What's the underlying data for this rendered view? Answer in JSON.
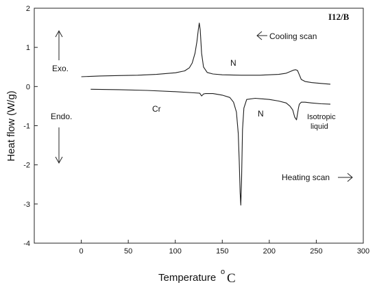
{
  "chart_data": {
    "type": "line",
    "title": "I12/B",
    "xlabel": "Temperature",
    "xlabel_unit_sup": "o",
    "xlabel_unit": "C",
    "ylabel": "Heat flow (W/g)",
    "xlim": [
      -50,
      300
    ],
    "ylim": [
      -4,
      2
    ],
    "xticks": [
      0,
      50,
      100,
      150,
      200,
      250,
      300
    ],
    "yticks": [
      -4,
      -3,
      -2,
      -1,
      0,
      1,
      2
    ],
    "grid": false,
    "series": [
      {
        "name": "Cooling scan",
        "x": [
          0,
          20,
          40,
          60,
          80,
          100,
          110,
          115,
          118,
          121,
          123,
          124.5,
          125.5,
          126.5,
          128,
          130,
          134,
          140,
          150,
          170,
          190,
          210,
          218,
          222,
          226,
          228,
          230,
          232,
          234,
          238,
          245,
          255,
          265
        ],
        "y": [
          0.25,
          0.27,
          0.28,
          0.29,
          0.31,
          0.35,
          0.4,
          0.48,
          0.6,
          0.85,
          1.15,
          1.45,
          1.62,
          1.45,
          0.85,
          0.5,
          0.36,
          0.32,
          0.3,
          0.29,
          0.29,
          0.31,
          0.34,
          0.38,
          0.42,
          0.43,
          0.41,
          0.3,
          0.18,
          0.13,
          0.1,
          0.08,
          0.06
        ]
      },
      {
        "name": "Heating scan",
        "x": [
          10,
          40,
          70,
          100,
          120,
          126,
          128,
          130,
          132,
          140,
          150,
          158,
          162,
          165,
          167,
          168,
          169,
          169.7,
          170.5,
          171.5,
          173,
          176,
          185,
          200,
          210,
          218,
          222,
          225,
          227,
          229,
          230,
          231,
          232,
          234,
          238,
          245,
          255,
          265
        ],
        "y": [
          -0.07,
          -0.08,
          -0.1,
          -0.13,
          -0.16,
          -0.17,
          -0.24,
          -0.19,
          -0.18,
          -0.18,
          -0.22,
          -0.28,
          -0.4,
          -0.65,
          -1.2,
          -1.9,
          -2.7,
          -3.03,
          -2.4,
          -1.1,
          -0.55,
          -0.33,
          -0.3,
          -0.33,
          -0.37,
          -0.42,
          -0.5,
          -0.6,
          -0.78,
          -0.85,
          -0.7,
          -0.55,
          -0.45,
          -0.4,
          -0.4,
          -0.42,
          -0.44,
          -0.45
        ]
      }
    ],
    "annotations": {
      "cooling_scan": "Cooling scan",
      "heating_scan": "Heating scan",
      "exo": "Exo.",
      "endo": "Endo.",
      "n_top": "N",
      "cr": "Cr",
      "n_bottom": "N",
      "isotropic_1": "Isotropic",
      "isotropic_2": "liquid"
    }
  }
}
